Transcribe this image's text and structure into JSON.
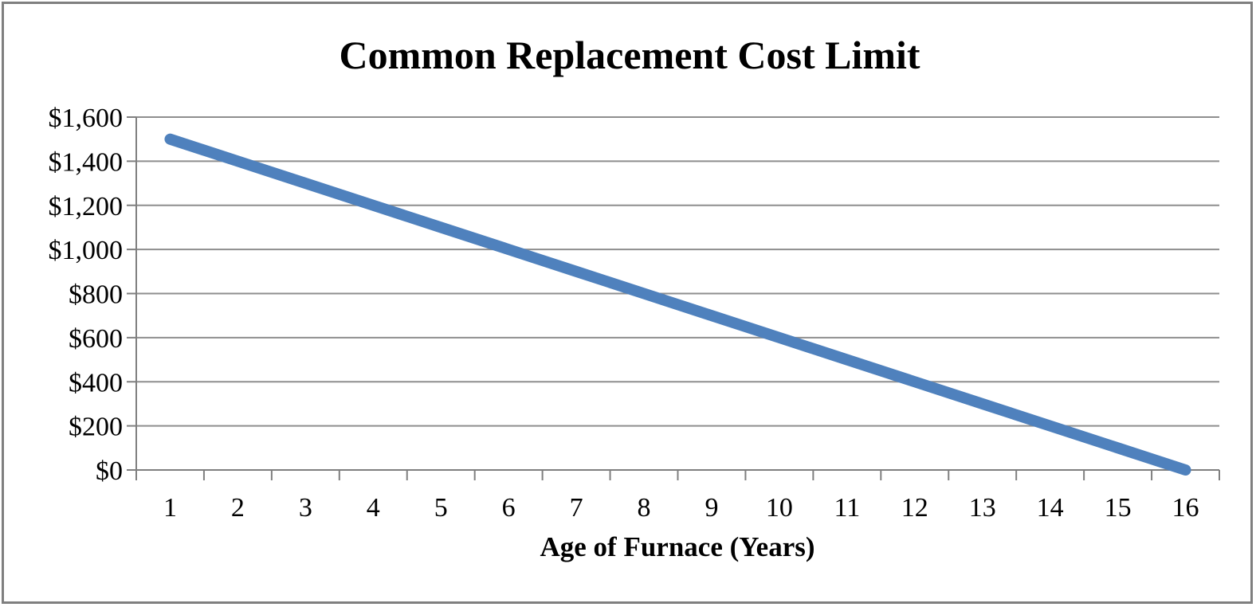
{
  "chart_data": {
    "type": "line",
    "title": "Common Replacement Cost Limit",
    "xlabel": "Age of Furnace (Years)",
    "ylabel": "",
    "x": [
      1,
      2,
      3,
      4,
      5,
      6,
      7,
      8,
      9,
      10,
      11,
      12,
      13,
      14,
      15,
      16
    ],
    "x_tick_labels": [
      "1",
      "2",
      "3",
      "4",
      "5",
      "6",
      "7",
      "8",
      "9",
      "10",
      "11",
      "12",
      "13",
      "14",
      "15",
      "16"
    ],
    "series": [
      {
        "name": "Common Replacement Cost Limit",
        "values": [
          1500,
          1400,
          1300,
          1200,
          1100,
          1000,
          900,
          800,
          700,
          600,
          500,
          400,
          300,
          200,
          100,
          0
        ]
      }
    ],
    "ylim": [
      0,
      1600
    ],
    "y_tick_values": [
      0,
      200,
      400,
      600,
      800,
      1000,
      1200,
      1400,
      1600
    ],
    "y_tick_labels": [
      "$0",
      "$200",
      "$400",
      "$600",
      "$800",
      "$1,000",
      "$1,200",
      "$1,400",
      "$1,600"
    ],
    "grid": "horizontal",
    "legend": "none",
    "colors": {
      "line": "#4F81BD",
      "gridline": "#8E8E8E",
      "axis": "#7F7F7F",
      "text": "#000000",
      "background": "#FFFFFF"
    }
  }
}
